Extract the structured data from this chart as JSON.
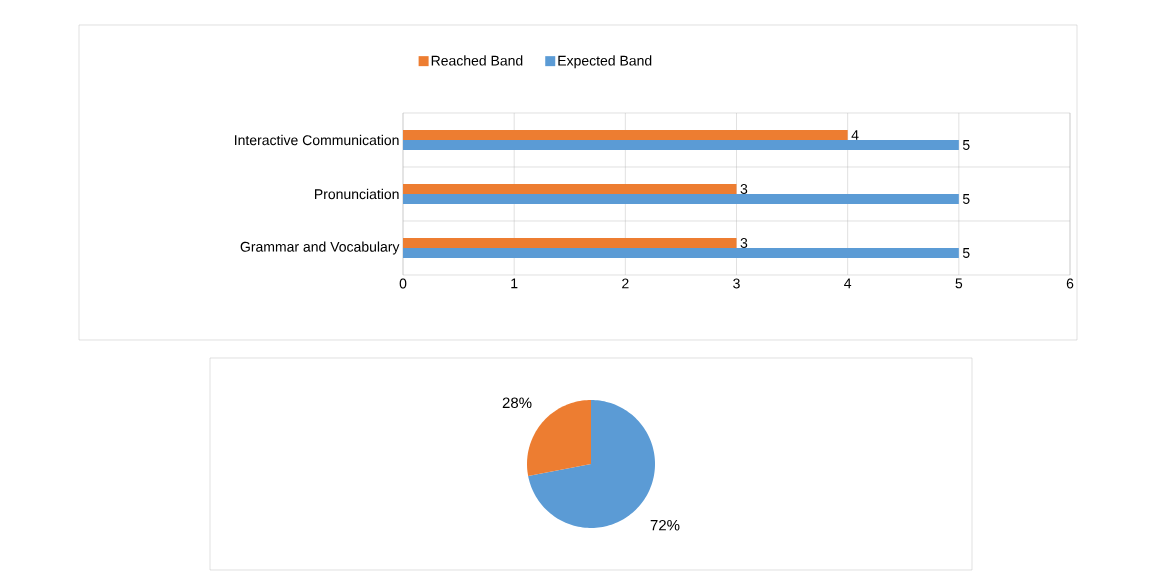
{
  "chart_data": [
    {
      "type": "bar",
      "orientation": "horizontal",
      "categories": [
        "Interactive Communication",
        "Pronunciation",
        "Grammar and Vocabulary"
      ],
      "series": [
        {
          "name": "Reached Band",
          "color": "#ed7d31",
          "values": [
            4,
            3,
            3
          ]
        },
        {
          "name": "Expected Band",
          "color": "#5b9bd5",
          "values": [
            5,
            5,
            5
          ]
        }
      ],
      "xlim": [
        0,
        6
      ],
      "xticks": [
        0,
        1,
        2,
        3,
        4,
        5,
        6
      ],
      "grid": true,
      "legend": "top",
      "data_labels": true
    },
    {
      "type": "pie",
      "categories": [
        null,
        null
      ],
      "values": [
        72,
        28
      ],
      "colors": [
        "#5b9bd5",
        "#ed7d31"
      ],
      "value_labels": [
        "72%",
        "28%"
      ]
    }
  ]
}
